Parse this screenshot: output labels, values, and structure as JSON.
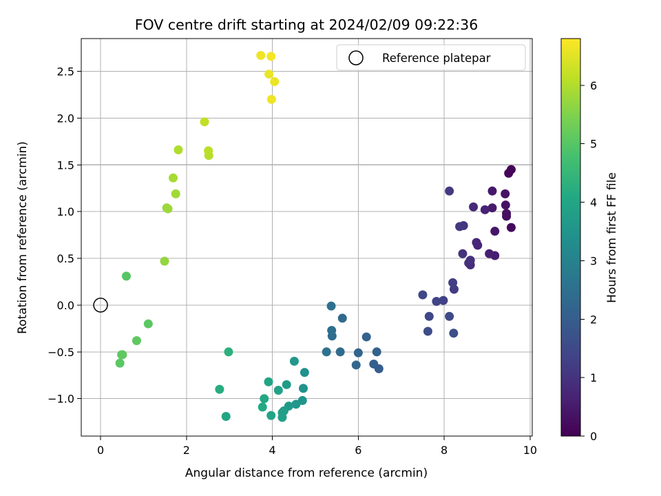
{
  "chart_data": {
    "type": "scatter",
    "title": "FOV centre drift starting at 2024/02/09 09:22:36",
    "xlabel": "Angular distance from reference (arcmin)",
    "ylabel": "Rotation from reference (arcmin)",
    "xlim": [
      -0.45,
      10.05
    ],
    "ylim": [
      -1.4,
      2.85
    ],
    "xticks": [
      0,
      2,
      4,
      6,
      8,
      10
    ],
    "yticks": [
      -1.0,
      -0.5,
      0.0,
      0.5,
      1.0,
      1.5,
      2.0,
      2.5
    ],
    "xtick_labels": [
      "0",
      "2",
      "4",
      "6",
      "8",
      "10"
    ],
    "ytick_labels": [
      "−1.0",
      "−0.5",
      "0.0",
      "0.5",
      "1.0",
      "1.5",
      "2.0",
      "2.5"
    ],
    "grid": true,
    "legend": {
      "label": "Reference platepar",
      "placement": "top-right"
    },
    "reference_point": {
      "x": 0,
      "y": 0
    },
    "colorbar": {
      "label": "Hours from first FF file",
      "colormap": "viridis",
      "range": [
        0,
        6.8
      ],
      "ticks": [
        0,
        1,
        2,
        3,
        4,
        5,
        6
      ],
      "tick_labels": [
        "0",
        "1",
        "2",
        "3",
        "4",
        "5",
        "6"
      ]
    },
    "points": [
      {
        "x": 9.56,
        "y": 1.45,
        "c": 0.05
      },
      {
        "x": 9.5,
        "y": 1.41,
        "c": 0.1
      },
      {
        "x": 9.56,
        "y": 0.83,
        "c": 0.15
      },
      {
        "x": 9.45,
        "y": 0.95,
        "c": 0.2
      },
      {
        "x": 9.45,
        "y": 0.98,
        "c": 0.25
      },
      {
        "x": 9.43,
        "y": 1.07,
        "c": 0.3
      },
      {
        "x": 9.42,
        "y": 1.19,
        "c": 0.35
      },
      {
        "x": 9.18,
        "y": 0.79,
        "c": 0.4
      },
      {
        "x": 9.12,
        "y": 1.22,
        "c": 0.45
      },
      {
        "x": 9.12,
        "y": 1.04,
        "c": 0.5
      },
      {
        "x": 9.18,
        "y": 0.53,
        "c": 0.55
      },
      {
        "x": 9.05,
        "y": 0.55,
        "c": 0.6
      },
      {
        "x": 8.95,
        "y": 1.02,
        "c": 0.65
      },
      {
        "x": 8.78,
        "y": 0.64,
        "c": 0.7
      },
      {
        "x": 8.75,
        "y": 0.67,
        "c": 0.75
      },
      {
        "x": 8.68,
        "y": 1.05,
        "c": 0.8
      },
      {
        "x": 8.61,
        "y": 0.43,
        "c": 0.85
      },
      {
        "x": 8.57,
        "y": 0.45,
        "c": 0.9
      },
      {
        "x": 8.61,
        "y": 0.48,
        "c": 0.95
      },
      {
        "x": 8.43,
        "y": 0.55,
        "c": 1.0
      },
      {
        "x": 8.45,
        "y": 0.85,
        "c": 1.05
      },
      {
        "x": 8.36,
        "y": 0.84,
        "c": 1.1
      },
      {
        "x": 8.12,
        "y": 1.22,
        "c": 1.15
      },
      {
        "x": 8.23,
        "y": 0.17,
        "c": 1.2
      },
      {
        "x": 8.2,
        "y": 0.24,
        "c": 1.25
      },
      {
        "x": 7.98,
        "y": 0.05,
        "c": 1.3
      },
      {
        "x": 7.82,
        "y": 0.04,
        "c": 1.35
      },
      {
        "x": 7.5,
        "y": 0.11,
        "c": 1.4
      },
      {
        "x": 7.65,
        "y": -0.12,
        "c": 1.45
      },
      {
        "x": 8.12,
        "y": -0.12,
        "c": 1.5
      },
      {
        "x": 7.62,
        "y": -0.28,
        "c": 1.55
      },
      {
        "x": 8.22,
        "y": -0.3,
        "c": 1.6
      },
      {
        "x": 6.48,
        "y": -0.68,
        "c": 2.0
      },
      {
        "x": 6.36,
        "y": -0.63,
        "c": 2.05
      },
      {
        "x": 6.43,
        "y": -0.5,
        "c": 2.1
      },
      {
        "x": 6.19,
        "y": -0.34,
        "c": 2.15
      },
      {
        "x": 6.0,
        "y": -0.51,
        "c": 2.2
      },
      {
        "x": 5.95,
        "y": -0.64,
        "c": 2.25
      },
      {
        "x": 5.63,
        "y": -0.14,
        "c": 2.3
      },
      {
        "x": 5.58,
        "y": -0.5,
        "c": 2.35
      },
      {
        "x": 5.39,
        "y": -0.33,
        "c": 2.4
      },
      {
        "x": 5.38,
        "y": -0.27,
        "c": 2.45
      },
      {
        "x": 5.37,
        "y": -0.01,
        "c": 2.5
      },
      {
        "x": 5.26,
        "y": -0.5,
        "c": 2.55
      },
      {
        "x": 4.75,
        "y": -0.72,
        "c": 3.4
      },
      {
        "x": 4.72,
        "y": -0.89,
        "c": 3.45
      },
      {
        "x": 4.7,
        "y": -1.02,
        "c": 3.5
      },
      {
        "x": 4.55,
        "y": -1.06,
        "c": 3.55
      },
      {
        "x": 4.51,
        "y": -0.6,
        "c": 3.6
      },
      {
        "x": 4.38,
        "y": -1.08,
        "c": 3.65
      },
      {
        "x": 4.33,
        "y": -0.85,
        "c": 3.7
      },
      {
        "x": 4.27,
        "y": -1.13,
        "c": 3.75
      },
      {
        "x": 4.23,
        "y": -1.15,
        "c": 3.8
      },
      {
        "x": 4.23,
        "y": -1.2,
        "c": 3.85
      },
      {
        "x": 4.14,
        "y": -0.91,
        "c": 3.9
      },
      {
        "x": 3.97,
        "y": -1.18,
        "c": 3.95
      },
      {
        "x": 3.91,
        "y": -0.82,
        "c": 4.0
      },
      {
        "x": 3.81,
        "y": -1.0,
        "c": 4.05
      },
      {
        "x": 3.77,
        "y": -1.09,
        "c": 4.1
      },
      {
        "x": 2.98,
        "y": -0.5,
        "c": 4.3
      },
      {
        "x": 2.77,
        "y": -0.9,
        "c": 4.2
      },
      {
        "x": 2.92,
        "y": -1.19,
        "c": 4.0
      },
      {
        "x": 0.6,
        "y": 0.31,
        "c": 5.0
      },
      {
        "x": 1.11,
        "y": -0.2,
        "c": 5.05
      },
      {
        "x": 0.84,
        "y": -0.38,
        "c": 5.1
      },
      {
        "x": 0.51,
        "y": -0.53,
        "c": 5.15
      },
      {
        "x": 0.49,
        "y": -0.53,
        "c": 5.1
      },
      {
        "x": 0.45,
        "y": -0.62,
        "c": 5.05
      },
      {
        "x": 1.49,
        "y": 0.47,
        "c": 5.7
      },
      {
        "x": 1.54,
        "y": 1.04,
        "c": 5.75
      },
      {
        "x": 1.57,
        "y": 1.03,
        "c": 5.8
      },
      {
        "x": 1.75,
        "y": 1.19,
        "c": 5.85
      },
      {
        "x": 1.69,
        "y": 1.36,
        "c": 5.9
      },
      {
        "x": 1.81,
        "y": 1.66,
        "c": 6.0
      },
      {
        "x": 2.52,
        "y": 1.6,
        "c": 6.05
      },
      {
        "x": 2.51,
        "y": 1.65,
        "c": 6.1
      },
      {
        "x": 2.42,
        "y": 1.96,
        "c": 6.15
      },
      {
        "x": 3.73,
        "y": 2.67,
        "c": 6.65
      },
      {
        "x": 3.97,
        "y": 2.66,
        "c": 6.7
      },
      {
        "x": 3.92,
        "y": 2.47,
        "c": 6.6
      },
      {
        "x": 4.05,
        "y": 2.39,
        "c": 6.6
      },
      {
        "x": 3.98,
        "y": 2.2,
        "c": 6.65
      }
    ]
  }
}
